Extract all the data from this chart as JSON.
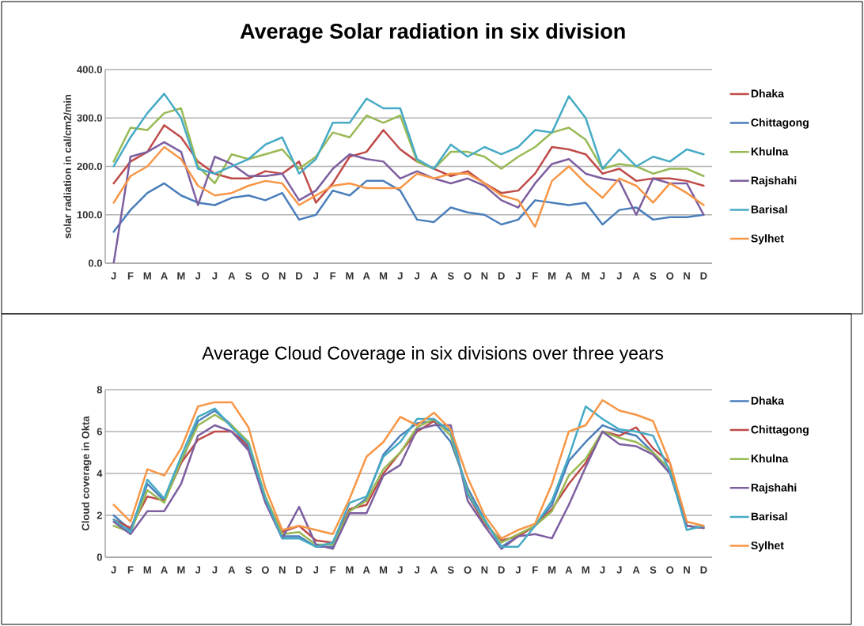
{
  "chart_data": [
    {
      "type": "line",
      "title": "Average Solar radiation in six division",
      "ylabel": "solar radiation in cal/cm2/min",
      "categories": [
        "J",
        "F",
        "M",
        "A",
        "M",
        "J",
        "J",
        "A",
        "S",
        "O",
        "N",
        "D",
        "J",
        "F",
        "M",
        "A",
        "M",
        "J",
        "J",
        "A",
        "S",
        "O",
        "N",
        "D",
        "J",
        "F",
        "M",
        "A",
        "M",
        "J",
        "J",
        "A",
        "S",
        "O",
        "N",
        "D"
      ],
      "ylim": [
        0,
        400
      ],
      "yticks": [
        {
          "value": 0,
          "label": "0.0"
        },
        {
          "value": 100,
          "label": "100.0"
        },
        {
          "value": 200,
          "label": "200.0"
        },
        {
          "value": 300,
          "label": "300.0"
        },
        {
          "value": 400,
          "label": "400.0"
        }
      ],
      "grid": "y",
      "legend": "right",
      "marker": "none",
      "line_style": "solid",
      "series": [
        {
          "name": "Dhaka",
          "color": "#be4b48",
          "values": [
            165,
            210,
            230,
            285,
            260,
            210,
            185,
            175,
            175,
            190,
            185,
            210,
            125,
            165,
            220,
            230,
            275,
            235,
            210,
            195,
            180,
            190,
            165,
            145,
            150,
            185,
            240,
            235,
            225,
            185,
            195,
            170,
            175,
            175,
            170,
            160
          ]
        },
        {
          "name": "Chittagong",
          "color": "#4a7ebb",
          "values": [
            65,
            110,
            145,
            165,
            140,
            125,
            120,
            135,
            140,
            130,
            145,
            90,
            100,
            150,
            140,
            170,
            170,
            150,
            90,
            85,
            115,
            105,
            100,
            80,
            90,
            130,
            125,
            120,
            125,
            80,
            110,
            115,
            90,
            95,
            95,
            100
          ]
        },
        {
          "name": "Khulna",
          "color": "#98b954",
          "values": [
            210,
            280,
            275,
            310,
            320,
            200,
            165,
            225,
            215,
            225,
            235,
            195,
            220,
            270,
            260,
            305,
            290,
            305,
            210,
            195,
            230,
            230,
            220,
            195,
            220,
            240,
            270,
            280,
            255,
            195,
            205,
            200,
            185,
            195,
            195,
            180
          ]
        },
        {
          "name": "Rajshahi",
          "color": "#7d5fa0",
          "values": [
            0,
            220,
            230,
            250,
            230,
            120,
            220,
            205,
            180,
            180,
            185,
            130,
            150,
            195,
            225,
            215,
            210,
            175,
            190,
            175,
            165,
            175,
            160,
            130,
            115,
            165,
            205,
            215,
            185,
            175,
            170,
            100,
            175,
            165,
            165,
            100
          ]
        },
        {
          "name": "Barisal",
          "color": "#46aac5",
          "values": [
            200,
            260,
            310,
            350,
            300,
            195,
            185,
            200,
            215,
            245,
            260,
            185,
            215,
            290,
            290,
            340,
            320,
            320,
            215,
            195,
            245,
            220,
            240,
            225,
            240,
            275,
            270,
            345,
            300,
            195,
            235,
            200,
            220,
            210,
            235,
            225
          ]
        },
        {
          "name": "Sylhet",
          "color": "#f79646",
          "values": [
            125,
            180,
            200,
            240,
            215,
            160,
            140,
            145,
            160,
            170,
            165,
            120,
            140,
            160,
            165,
            155,
            155,
            155,
            185,
            175,
            185,
            185,
            165,
            140,
            130,
            75,
            170,
            200,
            165,
            135,
            175,
            160,
            125,
            165,
            145,
            120
          ]
        }
      ]
    },
    {
      "type": "line",
      "title": "Average Cloud Coverage in six divisions over three years",
      "ylabel": "Cloud coverage in Okta",
      "categories": [
        "J",
        "F",
        "M",
        "A",
        "M",
        "J",
        "J",
        "A",
        "S",
        "O",
        "N",
        "D",
        "J",
        "F",
        "M",
        "A",
        "M",
        "J",
        "J",
        "A",
        "S",
        "O",
        "N",
        "D",
        "J",
        "F",
        "M",
        "A",
        "M",
        "J",
        "J",
        "A",
        "S",
        "O",
        "N",
        "D"
      ],
      "ylim": [
        0,
        8
      ],
      "yticks": [
        0,
        2,
        4,
        6,
        8
      ],
      "grid": "y",
      "legend": "right",
      "marker": "none",
      "line_style": "solid",
      "series": [
        {
          "name": "Dhaka",
          "color": "#4a7ebb",
          "values": [
            2.0,
            1.3,
            3.5,
            2.7,
            4.5,
            6.5,
            7.0,
            6.3,
            5.2,
            2.7,
            1.0,
            1.0,
            0.5,
            0.5,
            2.2,
            2.8,
            4.9,
            5.8,
            6.4,
            6.5,
            5.5,
            3.3,
            1.8,
            0.5,
            1.0,
            1.5,
            2.5,
            4.6,
            5.5,
            6.3,
            6.0,
            5.8,
            5.0,
            4.0,
            1.5,
            1.4
          ]
        },
        {
          "name": "Chittagong",
          "color": "#be4b48",
          "values": [
            1.8,
            1.4,
            2.9,
            2.7,
            4.5,
            5.6,
            6.0,
            6.0,
            5.3,
            2.8,
            1.2,
            1.5,
            0.8,
            0.7,
            2.3,
            2.5,
            4.0,
            5.0,
            6.0,
            6.5,
            6.0,
            3.0,
            1.6,
            0.8,
            1.0,
            1.5,
            2.3,
            3.5,
            4.5,
            6.0,
            5.8,
            6.2,
            5.2,
            4.5,
            1.5,
            1.4
          ]
        },
        {
          "name": "Khulna",
          "color": "#98b954",
          "values": [
            1.5,
            1.2,
            3.2,
            2.6,
            4.6,
            6.3,
            6.8,
            6.3,
            5.5,
            2.9,
            1.1,
            1.2,
            0.6,
            0.6,
            2.2,
            2.7,
            4.2,
            5.0,
            6.2,
            6.6,
            5.8,
            3.1,
            1.7,
            0.7,
            1.1,
            1.5,
            2.2,
            3.9,
            4.7,
            6.0,
            5.7,
            5.5,
            5.0,
            4.2,
            1.5,
            1.4
          ]
        },
        {
          "name": "Rajshahi",
          "color": "#7d5fa0",
          "values": [
            1.7,
            1.1,
            2.2,
            2.2,
            3.5,
            5.8,
            6.3,
            6.0,
            5.1,
            2.6,
            0.9,
            2.4,
            0.6,
            0.4,
            2.1,
            2.1,
            3.9,
            4.4,
            6.1,
            6.3,
            6.3,
            2.7,
            1.5,
            0.4,
            1.0,
            1.1,
            0.9,
            2.5,
            4.3,
            6.0,
            5.4,
            5.3,
            4.9,
            4.0,
            1.5,
            1.4
          ]
        },
        {
          "name": "Barisal",
          "color": "#46aac5",
          "values": [
            1.8,
            1.2,
            3.7,
            2.8,
            4.8,
            6.7,
            7.1,
            6.2,
            5.4,
            2.8,
            0.9,
            0.9,
            0.5,
            0.7,
            2.6,
            2.9,
            4.8,
            5.5,
            6.6,
            6.6,
            6.0,
            3.0,
            1.8,
            0.5,
            0.5,
            1.5,
            2.7,
            4.8,
            7.2,
            6.6,
            6.1,
            6.0,
            5.8,
            4.1,
            1.3,
            1.5
          ]
        },
        {
          "name": "Sylhet",
          "color": "#f79646",
          "values": [
            2.5,
            1.7,
            4.2,
            3.9,
            5.2,
            7.2,
            7.4,
            7.4,
            6.2,
            3.3,
            1.3,
            1.5,
            1.3,
            1.1,
            2.8,
            4.8,
            5.5,
            6.7,
            6.3,
            6.9,
            6.1,
            3.8,
            2.0,
            0.9,
            1.3,
            1.6,
            3.5,
            6.0,
            6.3,
            7.5,
            7.0,
            6.8,
            6.5,
            4.5,
            1.7,
            1.5
          ]
        }
      ]
    }
  ]
}
